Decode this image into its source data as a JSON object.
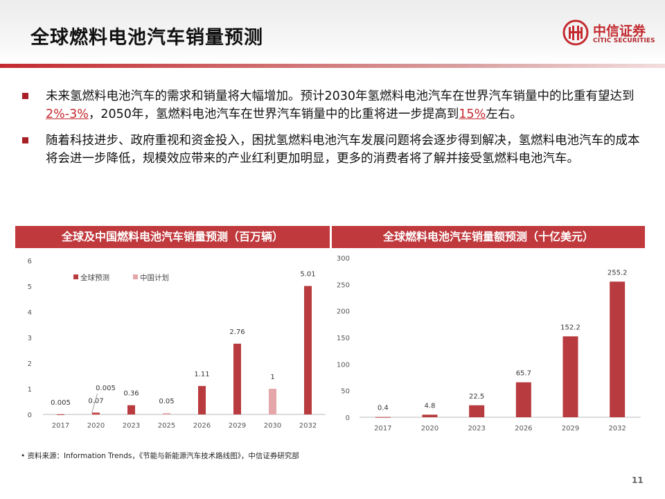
{
  "header": {
    "title": "全球燃料电池汽车销量预测",
    "logo": {
      "cn": "中信证券",
      "en": "CITIC SECURITIES"
    }
  },
  "bullets": [
    {
      "pre": "未来氢燃料电池汽车的需求和销量将大幅增加。预计2030年氢燃料电池汽车在世界汽车销量中的比重有望达到",
      "hl1": "2%-3%",
      "mid": "，2050年，氢燃料电池汽车在世界汽车销量中的比重将进一步提高到",
      "hl2": "15%",
      "post": "左右。"
    },
    {
      "text": "随着科技进步、政府重视和资金投入，困扰氢燃料电池汽车发展问题将会逐步得到解决，氢燃料电池汽车的成本将会进一步降低，规模效应带来的产业红利更加明显，更多的消费者将了解并接受氢燃料电池汽车。"
    }
  ],
  "colors": {
    "accent": "#c32a2f",
    "header_bar": "#c0393d",
    "bar_global": "#b83b3f",
    "bar_china": "#e4a6a9"
  },
  "chart_data": [
    {
      "type": "bar",
      "title": "全球及中国燃料电池汽车销量预测（百万辆）",
      "categories": [
        "2017",
        "2020",
        "2023",
        "2025",
        "2026",
        "2029",
        "2030",
        "2032"
      ],
      "ylim": [
        0,
        6
      ],
      "yticks": [
        0,
        1,
        2,
        3,
        4,
        5,
        6
      ],
      "legend_position": "top-left",
      "series": [
        {
          "name": "全球预测",
          "color": "#b83b3f",
          "values": [
            0.005,
            0.07,
            0.36,
            null,
            1.11,
            2.76,
            null,
            5.01
          ],
          "labels": [
            "0.005",
            "0.07",
            "0.36",
            "",
            "1.11",
            "2.76",
            "",
            "5.01"
          ]
        },
        {
          "name": "中国计划",
          "color": "#e4a6a9",
          "values": [
            null,
            0.005,
            null,
            0.05,
            null,
            null,
            1,
            null
          ],
          "labels": [
            "",
            "0.005",
            "",
            "0.05",
            "",
            "",
            "1",
            ""
          ]
        }
      ]
    },
    {
      "type": "bar",
      "title": "全球燃料电池汽车销量额预测（十亿美元）",
      "categories": [
        "2017",
        "2020",
        "2023",
        "2026",
        "2029",
        "2032"
      ],
      "ylim": [
        0,
        300
      ],
      "yticks": [
        0,
        50,
        100,
        150,
        200,
        250,
        300
      ],
      "series": [
        {
          "color": "#b83b3f",
          "values": [
            0.4,
            4.8,
            22.5,
            65.7,
            152.2,
            255.2
          ],
          "labels": [
            "0.4",
            "4.8",
            "22.5",
            "65.7",
            "152.2",
            "255.2"
          ]
        }
      ]
    }
  ],
  "source": "资料来源：Information Trends，《节能与新能源汽车技术路线图》，中信证券研究部",
  "page_number": "11"
}
